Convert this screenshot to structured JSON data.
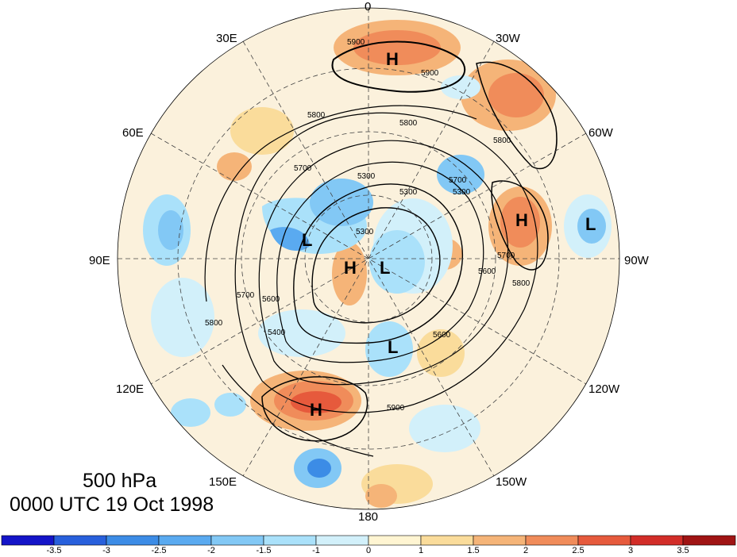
{
  "title": {
    "level": "500 hPa",
    "time": "0000 UTC 19 Oct 1998"
  },
  "longitude_labels": [
    {
      "id": "lon-0",
      "text": "0"
    },
    {
      "id": "lon-30w",
      "text": "30W"
    },
    {
      "id": "lon-60w",
      "text": "60W"
    },
    {
      "id": "lon-90w",
      "text": "90W"
    },
    {
      "id": "lon-120w",
      "text": "120W"
    },
    {
      "id": "lon-150w",
      "text": "150W"
    },
    {
      "id": "lon-180",
      "text": "180"
    },
    {
      "id": "lon-150e",
      "text": "150E"
    },
    {
      "id": "lon-120e",
      "text": "120E"
    },
    {
      "id": "lon-90e",
      "text": "90E"
    },
    {
      "id": "lon-60e",
      "text": "60E"
    },
    {
      "id": "lon-30e",
      "text": "30E"
    }
  ],
  "pressure_centers": [
    {
      "id": "h-north-atlantic",
      "letter": "H"
    },
    {
      "id": "h-north-america",
      "letter": "H"
    },
    {
      "id": "l-labrador",
      "letter": "L"
    },
    {
      "id": "h-siberia",
      "letter": "H"
    },
    {
      "id": "l-siberia",
      "letter": "L"
    },
    {
      "id": "l-canada",
      "letter": "L"
    },
    {
      "id": "l-east-asia",
      "letter": "L"
    },
    {
      "id": "h-north-pacific",
      "letter": "H"
    }
  ],
  "contour_labels": [
    "5900",
    "5900",
    "5800",
    "5800",
    "5700",
    "5300",
    "5300",
    "5300",
    "5300",
    "5700",
    "5800",
    "5600",
    "5700",
    "5600",
    "5800",
    "5700",
    "5800",
    "5400",
    "5600",
    "5900"
  ],
  "colorbar": {
    "ticks": [
      "-3.5",
      "-3",
      "-2.5",
      "-2",
      "-1.5",
      "-1",
      "0",
      "1",
      "1.5",
      "2",
      "2.5",
      "3",
      "3.5"
    ],
    "colors": [
      "#1414c8",
      "#2860dc",
      "#3c8ce6",
      "#5aaaf0",
      "#82c8f5",
      "#aae1fa",
      "#d2f0fa",
      "#fff5d2",
      "#fadc9b",
      "#f5b478",
      "#f08c5a",
      "#e65a3c",
      "#d22d28",
      "#a01414"
    ]
  },
  "shading_colors": {
    "neutral": "#fbf1dc",
    "warm_1": "#fadc9b",
    "warm_2": "#f5b478",
    "warm_3": "#f08c5a",
    "warm_4": "#e65a3c",
    "cool_1": "#d2f0fa",
    "cool_2": "#aae1fa",
    "cool_3": "#82c8f5",
    "cool_4": "#5aaaf0",
    "cool_5": "#3c8ce6"
  }
}
